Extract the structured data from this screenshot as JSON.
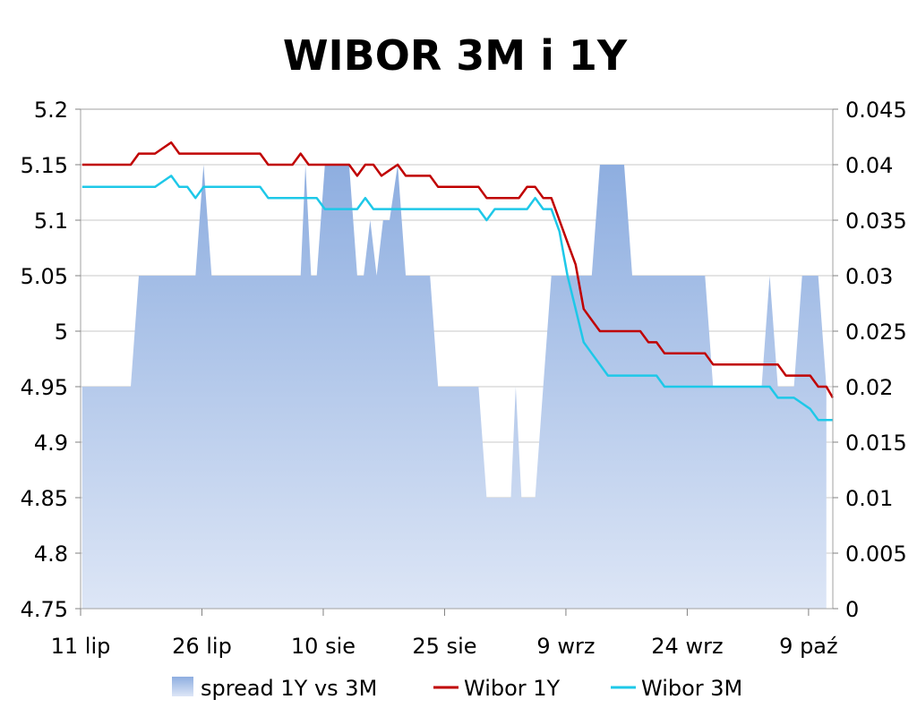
{
  "chart_data": {
    "type": "line",
    "title": "WIBOR 3M i 1Y",
    "grid": true,
    "legend_position": "bottom",
    "x_tick_labels": [
      "11 lip",
      "26 lip",
      "10 sie",
      "25 sie",
      "9 wrz",
      "24 wrz",
      "9 paź"
    ],
    "x_tick_days": [
      0,
      15,
      30,
      45,
      60,
      75,
      90
    ],
    "x_range_days": [
      0,
      93
    ],
    "y_left": {
      "ticks": [
        "5.2",
        "5.15",
        "5.1",
        "5.05",
        "5",
        "4.95",
        "4.9",
        "4.85",
        "4.8",
        "4.75"
      ],
      "range": [
        4.75,
        5.2
      ]
    },
    "y_right": {
      "ticks": [
        "0.045",
        "0.04",
        "0.035",
        "0.03",
        "0.025",
        "0.02",
        "0.015",
        "0.01",
        "0.005",
        "0"
      ],
      "range": [
        0,
        0.045
      ]
    },
    "series": [
      {
        "name": "spread 1Y vs 3M",
        "type": "area",
        "axis": "right",
        "color_top": "#8eaee0",
        "color_bottom": "#dde6f6",
        "points": [
          [
            0.2,
            0.02
          ],
          [
            1.2,
            0.02
          ],
          [
            2.2,
            0.02
          ],
          [
            3.2,
            0.02
          ],
          [
            4.2,
            0.02
          ],
          [
            5.2,
            0.02
          ],
          [
            6.2,
            0.02
          ],
          [
            7.2,
            0.03
          ],
          [
            8.2,
            0.03
          ],
          [
            9.2,
            0.03
          ],
          [
            10.2,
            0.03
          ],
          [
            11.2,
            0.03
          ],
          [
            12.2,
            0.03
          ],
          [
            13.2,
            0.03
          ],
          [
            14.2,
            0.03
          ],
          [
            15.2,
            0.04
          ],
          [
            16.2,
            0.03
          ],
          [
            17.2,
            0.03
          ],
          [
            18.2,
            0.03
          ],
          [
            19.2,
            0.03
          ],
          [
            20.2,
            0.03
          ],
          [
            21.2,
            0.03
          ],
          [
            22.2,
            0.03
          ],
          [
            23.2,
            0.03
          ],
          [
            24.2,
            0.03
          ],
          [
            25.2,
            0.03
          ],
          [
            26.2,
            0.03
          ],
          [
            27.2,
            0.03
          ],
          [
            27.8,
            0.04
          ],
          [
            28.5,
            0.03
          ],
          [
            29.2,
            0.03
          ],
          [
            30.2,
            0.04
          ],
          [
            31.2,
            0.04
          ],
          [
            32.2,
            0.04
          ],
          [
            33.2,
            0.04
          ],
          [
            34.2,
            0.03
          ],
          [
            35.0,
            0.03
          ],
          [
            35.8,
            0.035
          ],
          [
            36.6,
            0.03
          ],
          [
            37.4,
            0.035
          ],
          [
            38.2,
            0.035
          ],
          [
            39.2,
            0.04
          ],
          [
            40.2,
            0.03
          ],
          [
            41.2,
            0.03
          ],
          [
            42.2,
            0.03
          ],
          [
            43.2,
            0.03
          ],
          [
            44.2,
            0.02
          ],
          [
            45.2,
            0.02
          ],
          [
            46.2,
            0.02
          ],
          [
            47.2,
            0.02
          ],
          [
            48.2,
            0.02
          ],
          [
            49.2,
            0.02
          ],
          [
            50.2,
            0.01
          ],
          [
            51.2,
            0.01
          ],
          [
            52.2,
            0.01
          ],
          [
            53.2,
            0.01
          ],
          [
            53.8,
            0.02
          ],
          [
            54.5,
            0.01
          ],
          [
            55.2,
            0.01
          ],
          [
            56.2,
            0.01
          ],
          [
            57.2,
            0.02
          ],
          [
            58.2,
            0.03
          ],
          [
            59.2,
            0.03
          ],
          [
            60.2,
            0.03
          ],
          [
            61.2,
            0.03
          ],
          [
            62.2,
            0.03
          ],
          [
            63.2,
            0.03
          ],
          [
            64.2,
            0.04
          ],
          [
            65.2,
            0.04
          ],
          [
            66.2,
            0.04
          ],
          [
            67.2,
            0.04
          ],
          [
            68.2,
            0.03
          ],
          [
            69.2,
            0.03
          ],
          [
            70.2,
            0.03
          ],
          [
            71.2,
            0.03
          ],
          [
            72.2,
            0.03
          ],
          [
            73.2,
            0.03
          ],
          [
            74.2,
            0.03
          ],
          [
            75.2,
            0.03
          ],
          [
            76.2,
            0.03
          ],
          [
            77.2,
            0.03
          ],
          [
            78.2,
            0.02
          ],
          [
            79.2,
            0.02
          ],
          [
            80.2,
            0.02
          ],
          [
            81.2,
            0.02
          ],
          [
            82.2,
            0.02
          ],
          [
            83.2,
            0.02
          ],
          [
            84.2,
            0.02
          ],
          [
            85.2,
            0.03
          ],
          [
            86.2,
            0.02
          ],
          [
            87.2,
            0.02
          ],
          [
            88.2,
            0.02
          ],
          [
            89.2,
            0.03
          ],
          [
            90.2,
            0.03
          ],
          [
            91.2,
            0.03
          ],
          [
            92.2,
            0.02
          ]
        ]
      },
      {
        "name": "Wibor 1Y",
        "type": "line",
        "axis": "left",
        "color": "#c00000",
        "points": [
          [
            0.2,
            5.15
          ],
          [
            1.2,
            5.15
          ],
          [
            2.2,
            5.15
          ],
          [
            3.2,
            5.15
          ],
          [
            4.2,
            5.15
          ],
          [
            5.2,
            5.15
          ],
          [
            6.2,
            5.15
          ],
          [
            7.2,
            5.16
          ],
          [
            8.2,
            5.16
          ],
          [
            9.2,
            5.16
          ],
          [
            10.2,
            5.165
          ],
          [
            11.2,
            5.17
          ],
          [
            12.2,
            5.16
          ],
          [
            13.2,
            5.16
          ],
          [
            14.2,
            5.16
          ],
          [
            15.2,
            5.16
          ],
          [
            16.2,
            5.16
          ],
          [
            17.2,
            5.16
          ],
          [
            18.2,
            5.16
          ],
          [
            19.2,
            5.16
          ],
          [
            20.2,
            5.16
          ],
          [
            21.2,
            5.16
          ],
          [
            22.2,
            5.16
          ],
          [
            23.2,
            5.15
          ],
          [
            24.2,
            5.15
          ],
          [
            25.2,
            5.15
          ],
          [
            26.2,
            5.15
          ],
          [
            27.2,
            5.16
          ],
          [
            28.2,
            5.15
          ],
          [
            29.2,
            5.15
          ],
          [
            30.2,
            5.15
          ],
          [
            31.2,
            5.15
          ],
          [
            32.2,
            5.15
          ],
          [
            33.2,
            5.15
          ],
          [
            34.2,
            5.14
          ],
          [
            35.2,
            5.15
          ],
          [
            36.2,
            5.15
          ],
          [
            37.2,
            5.14
          ],
          [
            38.2,
            5.145
          ],
          [
            39.2,
            5.15
          ],
          [
            40.2,
            5.14
          ],
          [
            41.2,
            5.14
          ],
          [
            42.2,
            5.14
          ],
          [
            43.2,
            5.14
          ],
          [
            44.2,
            5.13
          ],
          [
            45.2,
            5.13
          ],
          [
            46.2,
            5.13
          ],
          [
            47.2,
            5.13
          ],
          [
            48.2,
            5.13
          ],
          [
            49.2,
            5.13
          ],
          [
            50.2,
            5.12
          ],
          [
            51.2,
            5.12
          ],
          [
            52.2,
            5.12
          ],
          [
            53.2,
            5.12
          ],
          [
            54.2,
            5.12
          ],
          [
            55.2,
            5.13
          ],
          [
            56.2,
            5.13
          ],
          [
            57.2,
            5.12
          ],
          [
            58.2,
            5.12
          ],
          [
            59.2,
            5.1
          ],
          [
            60.2,
            5.08
          ],
          [
            61.2,
            5.06
          ],
          [
            62.2,
            5.02
          ],
          [
            63.2,
            5.01
          ],
          [
            64.2,
            5.0
          ],
          [
            65.2,
            5.0
          ],
          [
            66.2,
            5.0
          ],
          [
            67.2,
            5.0
          ],
          [
            68.2,
            5.0
          ],
          [
            69.2,
            5.0
          ],
          [
            70.2,
            4.99
          ],
          [
            71.2,
            4.99
          ],
          [
            72.2,
            4.98
          ],
          [
            73.2,
            4.98
          ],
          [
            74.2,
            4.98
          ],
          [
            75.2,
            4.98
          ],
          [
            76.2,
            4.98
          ],
          [
            77.2,
            4.98
          ],
          [
            78.2,
            4.97
          ],
          [
            79.2,
            4.97
          ],
          [
            80.2,
            4.97
          ],
          [
            81.2,
            4.97
          ],
          [
            82.2,
            4.97
          ],
          [
            83.2,
            4.97
          ],
          [
            84.2,
            4.97
          ],
          [
            85.2,
            4.97
          ],
          [
            86.2,
            4.97
          ],
          [
            87.2,
            4.96
          ],
          [
            88.2,
            4.96
          ],
          [
            89.2,
            4.96
          ],
          [
            90.2,
            4.96
          ],
          [
            91.2,
            4.95
          ],
          [
            92.2,
            4.95
          ],
          [
            93.0,
            4.94
          ]
        ]
      },
      {
        "name": "Wibor 3M",
        "type": "line",
        "axis": "left",
        "color": "#1ec8e8",
        "points": [
          [
            0.2,
            5.13
          ],
          [
            1.2,
            5.13
          ],
          [
            2.2,
            5.13
          ],
          [
            3.2,
            5.13
          ],
          [
            4.2,
            5.13
          ],
          [
            5.2,
            5.13
          ],
          [
            6.2,
            5.13
          ],
          [
            7.2,
            5.13
          ],
          [
            8.2,
            5.13
          ],
          [
            9.2,
            5.13
          ],
          [
            10.2,
            5.135
          ],
          [
            11.2,
            5.14
          ],
          [
            12.2,
            5.13
          ],
          [
            13.2,
            5.13
          ],
          [
            14.2,
            5.12
          ],
          [
            15.2,
            5.13
          ],
          [
            16.2,
            5.13
          ],
          [
            17.2,
            5.13
          ],
          [
            18.2,
            5.13
          ],
          [
            19.2,
            5.13
          ],
          [
            20.2,
            5.13
          ],
          [
            21.2,
            5.13
          ],
          [
            22.2,
            5.13
          ],
          [
            23.2,
            5.12
          ],
          [
            24.2,
            5.12
          ],
          [
            25.2,
            5.12
          ],
          [
            26.2,
            5.12
          ],
          [
            27.2,
            5.12
          ],
          [
            28.2,
            5.12
          ],
          [
            29.2,
            5.12
          ],
          [
            30.2,
            5.11
          ],
          [
            31.2,
            5.11
          ],
          [
            32.2,
            5.11
          ],
          [
            33.2,
            5.11
          ],
          [
            34.2,
            5.11
          ],
          [
            35.2,
            5.12
          ],
          [
            36.2,
            5.11
          ],
          [
            37.2,
            5.11
          ],
          [
            38.2,
            5.11
          ],
          [
            39.2,
            5.11
          ],
          [
            40.2,
            5.11
          ],
          [
            41.2,
            5.11
          ],
          [
            42.2,
            5.11
          ],
          [
            43.2,
            5.11
          ],
          [
            44.2,
            5.11
          ],
          [
            45.2,
            5.11
          ],
          [
            46.2,
            5.11
          ],
          [
            47.2,
            5.11
          ],
          [
            48.2,
            5.11
          ],
          [
            49.2,
            5.11
          ],
          [
            50.2,
            5.1
          ],
          [
            51.2,
            5.11
          ],
          [
            52.2,
            5.11
          ],
          [
            53.2,
            5.11
          ],
          [
            54.2,
            5.11
          ],
          [
            55.2,
            5.11
          ],
          [
            56.2,
            5.12
          ],
          [
            57.2,
            5.11
          ],
          [
            58.2,
            5.11
          ],
          [
            59.2,
            5.09
          ],
          [
            60.2,
            5.05
          ],
          [
            61.2,
            5.02
          ],
          [
            62.2,
            4.99
          ],
          [
            63.2,
            4.98
          ],
          [
            64.2,
            4.97
          ],
          [
            65.2,
            4.96
          ],
          [
            66.2,
            4.96
          ],
          [
            67.2,
            4.96
          ],
          [
            68.2,
            4.96
          ],
          [
            69.2,
            4.96
          ],
          [
            70.2,
            4.96
          ],
          [
            71.2,
            4.96
          ],
          [
            72.2,
            4.95
          ],
          [
            73.2,
            4.95
          ],
          [
            74.2,
            4.95
          ],
          [
            75.2,
            4.95
          ],
          [
            76.2,
            4.95
          ],
          [
            77.2,
            4.95
          ],
          [
            78.2,
            4.95
          ],
          [
            79.2,
            4.95
          ],
          [
            80.2,
            4.95
          ],
          [
            81.2,
            4.95
          ],
          [
            82.2,
            4.95
          ],
          [
            83.2,
            4.95
          ],
          [
            84.2,
            4.95
          ],
          [
            85.2,
            4.95
          ],
          [
            86.2,
            4.94
          ],
          [
            87.2,
            4.94
          ],
          [
            88.2,
            4.94
          ],
          [
            89.2,
            4.935
          ],
          [
            90.2,
            4.93
          ],
          [
            91.2,
            4.92
          ],
          [
            92.2,
            4.92
          ],
          [
            93.0,
            4.92
          ]
        ]
      }
    ]
  }
}
